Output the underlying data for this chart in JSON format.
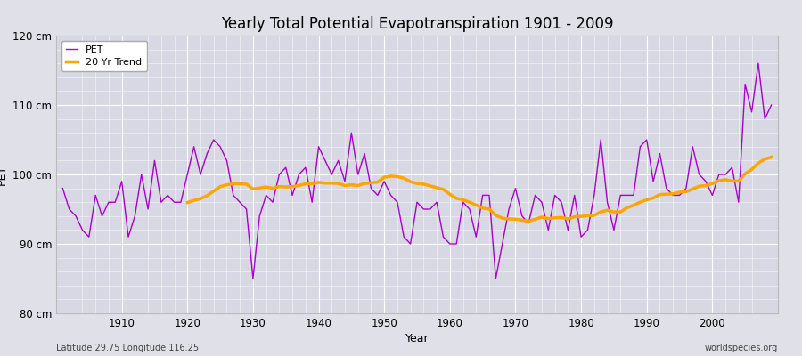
{
  "title": "Yearly Total Potential Evapotranspiration 1901 - 2009",
  "xlabel": "Year",
  "ylabel": "PET",
  "subtitle_left": "Latitude 29.75 Longitude 116.25",
  "subtitle_right": "worldspecies.org",
  "pet_color": "#AA00CC",
  "trend_color": "#FFA500",
  "bg_color": "#E0E0E8",
  "plot_bg_color": "#D8D8E4",
  "ylim": [
    80,
    120
  ],
  "yticks": [
    80,
    90,
    100,
    110,
    120
  ],
  "ytick_labels": [
    "80 cm",
    "90 cm",
    "100 cm",
    "110 cm",
    "120 cm"
  ],
  "years": [
    1901,
    1902,
    1903,
    1904,
    1905,
    1906,
    1907,
    1908,
    1909,
    1910,
    1911,
    1912,
    1913,
    1914,
    1915,
    1916,
    1917,
    1918,
    1919,
    1920,
    1921,
    1922,
    1923,
    1924,
    1925,
    1926,
    1927,
    1928,
    1929,
    1930,
    1931,
    1932,
    1933,
    1934,
    1935,
    1936,
    1937,
    1938,
    1939,
    1940,
    1941,
    1942,
    1943,
    1944,
    1945,
    1946,
    1947,
    1948,
    1949,
    1950,
    1951,
    1952,
    1953,
    1954,
    1955,
    1956,
    1957,
    1958,
    1959,
    1960,
    1961,
    1962,
    1963,
    1964,
    1965,
    1966,
    1967,
    1968,
    1969,
    1970,
    1971,
    1972,
    1973,
    1974,
    1975,
    1976,
    1977,
    1978,
    1979,
    1980,
    1981,
    1982,
    1983,
    1984,
    1985,
    1986,
    1987,
    1988,
    1989,
    1990,
    1991,
    1992,
    1993,
    1994,
    1995,
    1996,
    1997,
    1998,
    1999,
    2000,
    2001,
    2002,
    2003,
    2004,
    2005,
    2006,
    2007,
    2008,
    2009
  ],
  "pet_values": [
    98,
    95,
    94,
    92,
    91,
    97,
    94,
    96,
    96,
    99,
    91,
    94,
    100,
    95,
    102,
    96,
    97,
    96,
    96,
    100,
    104,
    100,
    103,
    105,
    104,
    102,
    97,
    96,
    95,
    85,
    94,
    97,
    96,
    100,
    101,
    97,
    100,
    101,
    96,
    104,
    102,
    100,
    102,
    99,
    106,
    100,
    103,
    98,
    97,
    99,
    97,
    96,
    91,
    90,
    96,
    95,
    95,
    96,
    91,
    90,
    90,
    96,
    95,
    91,
    97,
    97,
    85,
    90,
    95,
    98,
    94,
    93,
    97,
    96,
    92,
    97,
    96,
    92,
    97,
    91,
    92,
    97,
    105,
    96,
    92,
    97,
    97,
    97,
    104,
    105,
    99,
    103,
    98,
    97,
    97,
    98,
    104,
    100,
    99,
    97,
    100,
    100,
    101,
    96,
    113,
    109,
    116,
    108,
    110
  ],
  "xlim": [
    1900,
    2010
  ]
}
